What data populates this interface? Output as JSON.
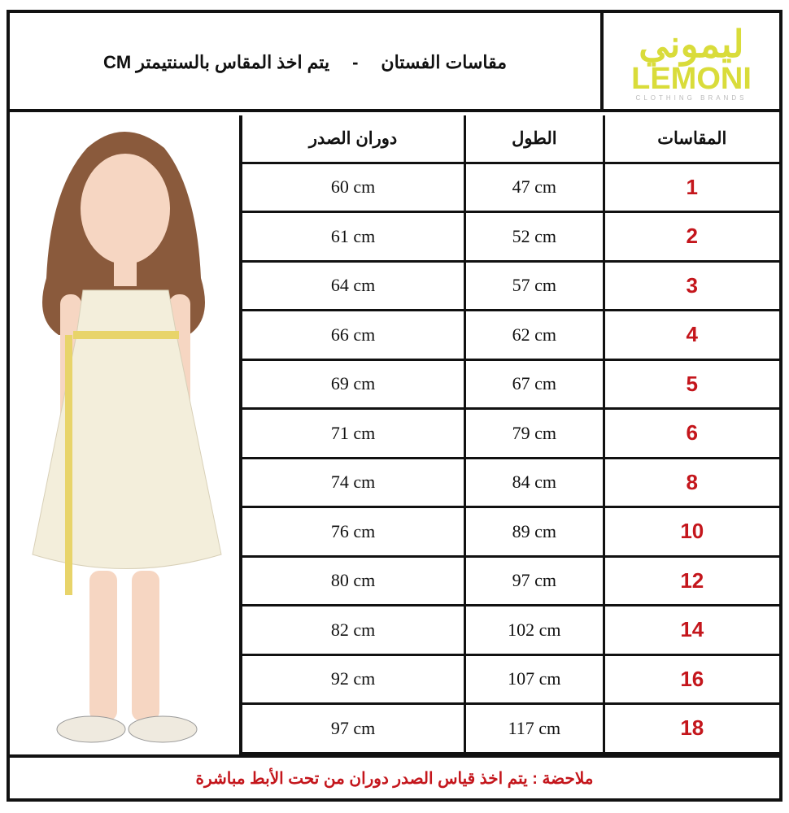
{
  "header": {
    "title_part1": "مقاسات الفستان",
    "separator": "-",
    "title_part2": "يتم اخذ المقاس بالسنتيمتر CM"
  },
  "logo": {
    "arabic": "ليموني",
    "english": "LEMONI",
    "tagline": "CLOTHING BRANDS",
    "color": "#d9dc3a"
  },
  "table": {
    "headers": {
      "size": "المقاسات",
      "length": "الطول",
      "chest": "دوران الصدر"
    },
    "rows": [
      {
        "size": "1",
        "length": "47 cm",
        "chest": "60 cm"
      },
      {
        "size": "2",
        "length": "52 cm",
        "chest": "61 cm"
      },
      {
        "size": "3",
        "length": "57 cm",
        "chest": "64 cm"
      },
      {
        "size": "4",
        "length": "62 cm",
        "chest": "66 cm"
      },
      {
        "size": "5",
        "length": "67 cm",
        "chest": "69 cm"
      },
      {
        "size": "6",
        "length": "79 cm",
        "chest": "71 cm"
      },
      {
        "size": "8",
        "length": "84 cm",
        "chest": "74 cm"
      },
      {
        "size": "10",
        "length": "89 cm",
        "chest": "76 cm"
      },
      {
        "size": "12",
        "length": "97 cm",
        "chest": "80 cm"
      },
      {
        "size": "14",
        "length": "102 cm",
        "chest": "82 cm"
      },
      {
        "size": "16",
        "length": "107 cm",
        "chest": "92 cm"
      },
      {
        "size": "18",
        "length": "117 cm",
        "chest": "97 cm"
      }
    ]
  },
  "footer": {
    "note": "ملاحضة : يتم اخذ قياس الصدر دوران من تحت الأبط مباشرة",
    "color": "#c4161c"
  }
}
